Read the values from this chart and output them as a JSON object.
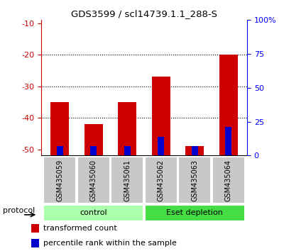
{
  "title": "GDS3599 / scl14739.1.1_288-S",
  "samples": [
    "GSM435059",
    "GSM435060",
    "GSM435061",
    "GSM435062",
    "GSM435063",
    "GSM435064"
  ],
  "red_values": [
    -35,
    -42,
    -35,
    -27,
    -49,
    -20
  ],
  "blue_values": [
    -49,
    -49,
    -49,
    -46,
    -49,
    -43
  ],
  "ylim_left": [
    -52,
    -9
  ],
  "ylim_right": [
    0,
    100
  ],
  "yticks_left": [
    -50,
    -40,
    -30,
    -20,
    -10
  ],
  "yticks_right": [
    0,
    25,
    50,
    75,
    100
  ],
  "yticklabels_right": [
    "0",
    "25",
    "50",
    "75",
    "100%"
  ],
  "group_control_color": "#aaffaa",
  "group_depletion_color": "#44dd44",
  "bar_width": 0.55,
  "red_color": "#CC0000",
  "blue_color": "#0000CC",
  "bg_color": "#ffffff",
  "label_area_color": "#c8c8c8",
  "protocol_label": "protocol",
  "legend_red": "transformed count",
  "legend_blue": "percentile rank within the sample",
  "grid_lines": [
    -20,
    -30,
    -40
  ]
}
